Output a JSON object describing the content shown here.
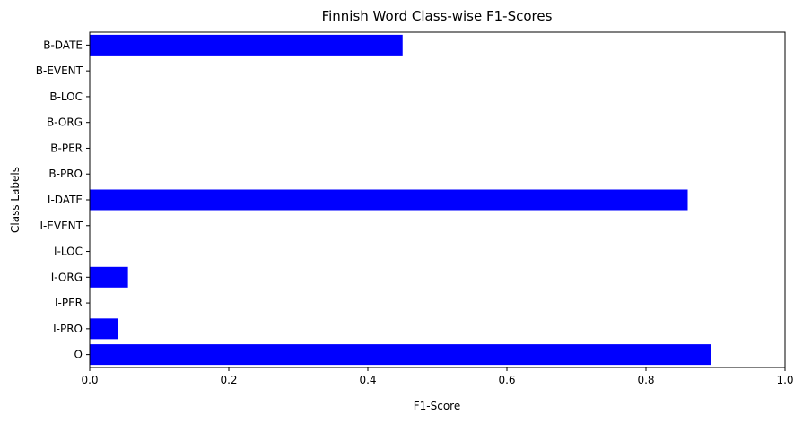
{
  "chart_data": {
    "type": "bar",
    "orientation": "horizontal",
    "title": "Finnish Word Class-wise F1-Scores",
    "xlabel": "F1-Score",
    "ylabel": "Class Labels",
    "xlim": [
      0,
      1.0
    ],
    "x_ticks": [
      "0.0",
      "0.2",
      "0.4",
      "0.6",
      "0.8",
      "1.0"
    ],
    "categories": [
      "B-DATE",
      "B-EVENT",
      "B-LOC",
      "B-ORG",
      "B-PER",
      "B-PRO",
      "I-DATE",
      "I-EVENT",
      "I-LOC",
      "I-ORG",
      "I-PER",
      "I-PRO",
      "O"
    ],
    "values": [
      0.45,
      0.0,
      0.0,
      0.0,
      0.0,
      0.0,
      0.86,
      0.0,
      0.0,
      0.055,
      0.0,
      0.04,
      0.893
    ],
    "bar_color": "#0000ff",
    "grid": false,
    "legend": "none"
  }
}
